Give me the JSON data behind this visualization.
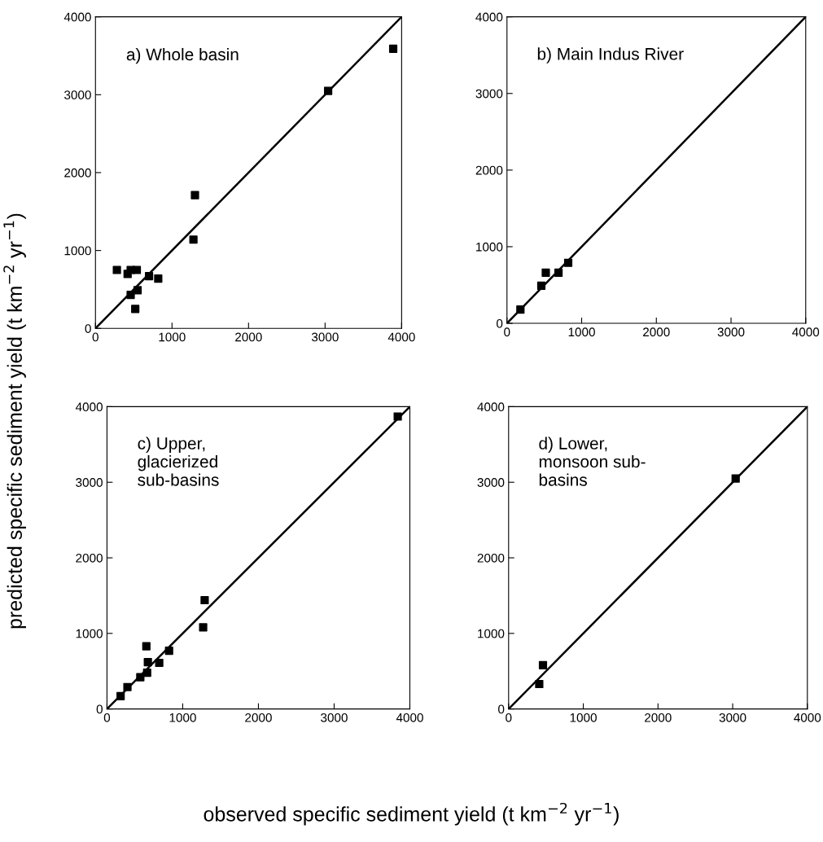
{
  "chart_data": [
    {
      "type": "scatter",
      "ylabel": "predicted specific sediment yield (t km$^{−2}$ yr$^{−1}$)",
      "annotations": [
        "a) Whole basin"
      ],
      "xlim": [
        0,
        4000
      ],
      "ylim": [
        0,
        4000
      ],
      "xticks": [
        0,
        1000,
        2000,
        3000,
        4000
      ],
      "yticks": [
        0,
        1000,
        2000,
        3000,
        4000
      ],
      "series": [
        {
          "marker": "square",
          "color": "#000000",
          "x": [
            280,
            420,
            460,
            540,
            700,
            820,
            550,
            460,
            520,
            1300,
            1280,
            3040,
            3890
          ],
          "values": [
            750,
            700,
            750,
            750,
            670,
            640,
            490,
            430,
            250,
            1710,
            1140,
            3050,
            3590
          ]
        },
        {
          "type": "line",
          "color": "#000000",
          "x": [
            0,
            4000
          ],
          "values": [
            0,
            4000
          ]
        }
      ]
    },
    {
      "type": "scatter",
      "annotations": [
        "b) Main Indus River"
      ],
      "xlim": [
        0,
        4000
      ],
      "ylim": [
        0,
        4000
      ],
      "xticks": [
        0,
        1000,
        2000,
        3000,
        4000
      ],
      "yticks": [
        0,
        1000,
        2000,
        3000,
        4000
      ],
      "series": [
        {
          "marker": "square",
          "color": "#000000",
          "x": [
            180,
            460,
            520,
            690,
            820
          ],
          "values": [
            180,
            490,
            660,
            660,
            790
          ]
        },
        {
          "type": "line",
          "color": "#000000",
          "x": [
            0,
            4000
          ],
          "values": [
            0,
            4000
          ]
        }
      ]
    },
    {
      "type": "scatter",
      "annotations": [
        "c) Upper,\nglacierized\nsub-basins"
      ],
      "xlim": [
        0,
        4000
      ],
      "ylim": [
        0,
        4000
      ],
      "xticks": [
        0,
        1000,
        2000,
        3000,
        4000
      ],
      "yticks": [
        0,
        1000,
        2000,
        3000,
        4000
      ],
      "series": [
        {
          "marker": "square",
          "color": "#000000",
          "x": [
            180,
            270,
            440,
            530,
            540,
            520,
            690,
            820,
            1270,
            1290,
            3840
          ],
          "values": [
            170,
            290,
            420,
            480,
            620,
            830,
            610,
            770,
            1080,
            1440,
            3870
          ]
        },
        {
          "type": "line",
          "color": "#000000",
          "x": [
            0,
            4000
          ],
          "values": [
            0,
            4000
          ]
        }
      ]
    },
    {
      "type": "scatter",
      "xlabel": "observed specific sediment yield (t km$^{−2}$ yr$^{−1}$)",
      "annotations": [
        "d) Lower,\nmonsoon sub-\nbasins"
      ],
      "xlim": [
        0,
        4000
      ],
      "ylim": [
        0,
        4000
      ],
      "xticks": [
        0,
        1000,
        2000,
        3000,
        4000
      ],
      "yticks": [
        0,
        1000,
        2000,
        3000,
        4000
      ],
      "series": [
        {
          "marker": "square",
          "color": "#000000",
          "x": [
            460,
            410,
            3040
          ],
          "values": [
            580,
            330,
            3050
          ]
        },
        {
          "type": "line",
          "color": "#000000",
          "x": [
            0,
            4000
          ],
          "values": [
            0,
            4000
          ]
        }
      ]
    }
  ]
}
